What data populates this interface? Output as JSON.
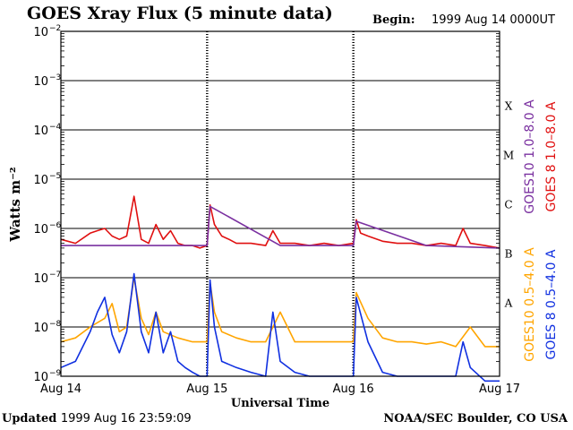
{
  "header": {
    "title": "GOES Xray Flux (5 minute data)",
    "begin_label": "Begin:",
    "begin_value": "1999 Aug 14 0000UT"
  },
  "footer": {
    "updated_label": "Updated",
    "updated_value": "1999 Aug 16 23:59:09",
    "credit": "NOAA/SEC Boulder, CO USA"
  },
  "chart_data": {
    "type": "line",
    "title": "GOES Xray Flux (5 minute data)",
    "xlabel": "Universal Time",
    "ylabel": "Watts m⁻²",
    "y_scale": "log",
    "ylim": [
      1e-09,
      0.01
    ],
    "xlim": [
      0,
      3
    ],
    "x_unit": "days since 1999 Aug 14 00:00 UT",
    "grid": "horizontal at each decade",
    "x_ticks": [
      "Aug 14",
      "Aug 15",
      "Aug 16",
      "Aug 17"
    ],
    "y_ticks": [
      {
        "base": "10",
        "exp": "−9",
        "value": 1e-09
      },
      {
        "base": "10",
        "exp": "−8",
        "value": 1e-08
      },
      {
        "base": "10",
        "exp": "−7",
        "value": 1e-07
      },
      {
        "base": "10",
        "exp": "−6",
        "value": 1e-06
      },
      {
        "base": "10",
        "exp": "−5",
        "value": 1e-05
      },
      {
        "base": "10",
        "exp": "−4",
        "value": 0.0001
      },
      {
        "base": "10",
        "exp": "−3",
        "value": 0.001
      },
      {
        "base": "10",
        "exp": "−2",
        "value": 0.01
      }
    ],
    "flare_classes": [
      {
        "label": "A",
        "value": 1e-08
      },
      {
        "label": "B",
        "value": 1e-07
      },
      {
        "label": "C",
        "value": 1e-06
      },
      {
        "label": "M",
        "value": 1e-05
      },
      {
        "label": "X",
        "value": 0.0001
      }
    ],
    "legend": [
      {
        "label": "GOES10 1.0–8.0 A",
        "color": "#7a30a0"
      },
      {
        "label": "GOES 8 1.0–8.0 A",
        "color": "#e01010"
      },
      {
        "label": "GOES10 0.5–4.0 A",
        "color": "#ffa500"
      },
      {
        "label": "GOES 8 0.5–4.0 A",
        "color": "#1030e0"
      }
    ],
    "series": [
      {
        "name": "GOES 8 1.0–8.0 A",
        "color": "#e01010",
        "x": [
          0.0,
          0.1,
          0.2,
          0.25,
          0.3,
          0.35,
          0.4,
          0.45,
          0.5,
          0.55,
          0.6,
          0.65,
          0.7,
          0.75,
          0.8,
          0.85,
          0.9,
          0.95,
          1.0,
          1.02,
          1.05,
          1.1,
          1.15,
          1.2,
          1.3,
          1.4,
          1.45,
          1.5,
          1.6,
          1.7,
          1.8,
          1.9,
          2.0,
          2.02,
          2.05,
          2.1,
          2.2,
          2.3,
          2.4,
          2.5,
          2.6,
          2.7,
          2.75,
          2.8,
          2.9,
          3.0
        ],
        "y": [
          6e-07,
          5e-07,
          8e-07,
          9e-07,
          1e-06,
          7e-07,
          6e-07,
          7e-07,
          4.5e-06,
          6e-07,
          5e-07,
          1.2e-06,
          6e-07,
          9e-07,
          5e-07,
          4.5e-07,
          4.5e-07,
          4e-07,
          4.5e-07,
          3e-06,
          1.2e-06,
          7e-07,
          6e-07,
          5e-07,
          5e-07,
          4.5e-07,
          9e-07,
          5e-07,
          5e-07,
          4.5e-07,
          5e-07,
          4.5e-07,
          5e-07,
          1.5e-06,
          8e-07,
          7e-07,
          5.5e-07,
          5e-07,
          5e-07,
          4.5e-07,
          5e-07,
          4.5e-07,
          1e-06,
          5e-07,
          4.5e-07,
          4e-07
        ]
      },
      {
        "name": "GOES10 0.5–4.0 A",
        "color": "#ffa500",
        "x": [
          0.0,
          0.1,
          0.2,
          0.3,
          0.35,
          0.4,
          0.45,
          0.5,
          0.55,
          0.6,
          0.65,
          0.7,
          0.8,
          0.9,
          0.95,
          1.0,
          1.02,
          1.05,
          1.1,
          1.2,
          1.3,
          1.4,
          1.5,
          1.6,
          1.7,
          1.8,
          1.9,
          2.0,
          2.02,
          2.1,
          2.2,
          2.3,
          2.4,
          2.5,
          2.6,
          2.7,
          2.8,
          2.9,
          3.0
        ],
        "y": [
          5e-09,
          6e-09,
          1e-08,
          1.5e-08,
          3e-08,
          8e-09,
          1e-08,
          1e-07,
          1.5e-08,
          7e-09,
          2e-08,
          8e-09,
          6e-09,
          5e-09,
          5e-09,
          5e-09,
          8e-08,
          2e-08,
          8e-09,
          6e-09,
          5e-09,
          5e-09,
          2e-08,
          5e-09,
          5e-09,
          5e-09,
          5e-09,
          5e-09,
          5e-08,
          1.5e-08,
          6e-09,
          5e-09,
          5e-09,
          4.5e-09,
          5e-09,
          4e-09,
          1e-08,
          4e-09,
          4e-09
        ]
      },
      {
        "name": "GOES 8 0.5–4.0 A",
        "color": "#1030e0",
        "x": [
          0.0,
          0.1,
          0.2,
          0.25,
          0.3,
          0.35,
          0.4,
          0.45,
          0.5,
          0.55,
          0.6,
          0.65,
          0.7,
          0.75,
          0.8,
          0.85,
          0.9,
          0.95,
          1.0,
          1.02,
          1.05,
          1.1,
          1.2,
          1.3,
          1.4,
          1.45,
          1.5,
          1.6,
          1.7,
          1.8,
          1.9,
          2.0,
          2.02,
          2.1,
          2.2,
          2.3,
          2.4,
          2.5,
          2.6,
          2.7,
          2.75,
          2.8,
          2.9,
          2.95,
          3.0
        ],
        "y": [
          1.5e-09,
          2e-09,
          8e-09,
          2e-08,
          4e-08,
          7e-09,
          3e-09,
          8e-09,
          1.2e-07,
          8e-09,
          3e-09,
          2e-08,
          3e-09,
          8e-09,
          2e-09,
          1.5e-09,
          1.2e-09,
          1e-09,
          1e-09,
          9e-08,
          1e-08,
          2e-09,
          1.5e-09,
          1.2e-09,
          1e-09,
          2e-08,
          2e-09,
          1.2e-09,
          1e-09,
          1e-09,
          1e-09,
          1e-09,
          4e-08,
          5e-09,
          1.2e-09,
          1e-09,
          1e-09,
          1e-09,
          1e-09,
          1e-09,
          5e-09,
          1.5e-09,
          8e-10,
          8e-10,
          8e-10
        ]
      },
      {
        "name": "GOES10 1.0–8.0 A",
        "color": "#7a30a0",
        "x": [
          0.0,
          0.5,
          1.0,
          1.02,
          1.5,
          2.0,
          2.02,
          2.5,
          3.0
        ],
        "y": [
          4.5e-07,
          4.5e-07,
          4.5e-07,
          2.8e-06,
          4.5e-07,
          4.5e-07,
          1.4e-06,
          4.5e-07,
          4e-07
        ]
      }
    ]
  }
}
